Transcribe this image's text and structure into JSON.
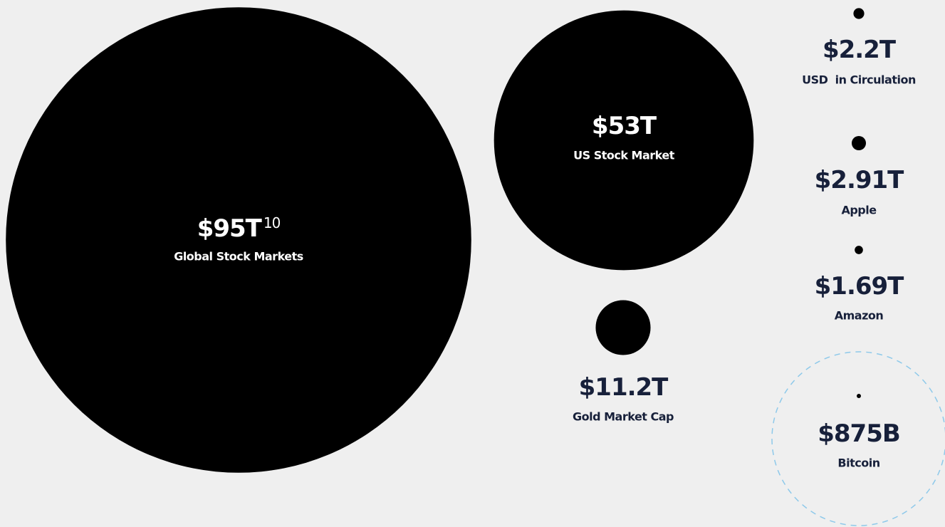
{
  "chart_data": {
    "type": "bubble",
    "categories": [
      "Global Stock Markets",
      "US Stock Market",
      "Gold Market Cap",
      "USD  in Circulation",
      "Apple",
      "Amazon",
      "Bitcoin"
    ],
    "values": [
      95,
      53,
      11.2,
      2.2,
      2.91,
      1.69,
      0.875
    ],
    "value_labels": [
      "$95T",
      "$53T",
      "$11.2T",
      "$2.2T",
      "$2.91T",
      "$1.69T",
      "$875B"
    ],
    "footnote": "10",
    "color": "#000000"
  }
}
